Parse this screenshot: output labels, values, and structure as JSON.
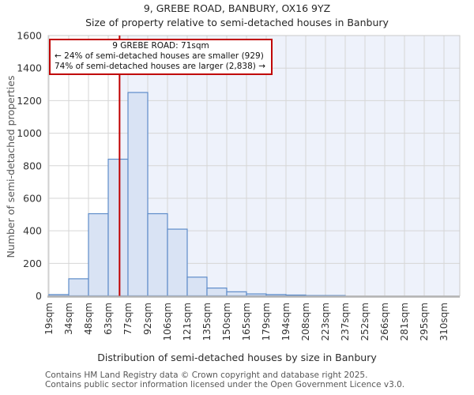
{
  "header": {
    "title_line1": "9, GREBE ROAD, BANBURY, OX16 9YZ",
    "title_line2": "Size of property relative to semi-detached houses in Banbury"
  },
  "annotation": {
    "line1": "9 GREBE ROAD: 71sqm",
    "line2": "← 24% of semi-detached houses are smaller (929)",
    "line3": "74% of semi-detached houses are larger (2,838) →",
    "border_color": "#c00000"
  },
  "footer": {
    "line1": "Contains HM Land Registry data © Crown copyright and database right 2025.",
    "line2": "Contains public sector information licensed under the Open Government Licence v3.0."
  },
  "chart_data": {
    "type": "bar",
    "title": "9, GREBE ROAD, BANBURY, OX16 9YZ — Size of property relative to semi-detached houses in Banbury",
    "xlabel": "Distribution of semi-detached houses by size in Banbury",
    "ylabel": "Number of semi-detached properties",
    "bin_edges_sqm": [
      19,
      34,
      48,
      63,
      77,
      92,
      106,
      121,
      135,
      150,
      165,
      179,
      194,
      208,
      223,
      237,
      252,
      266,
      281,
      295,
      310
    ],
    "x_tick_labels": [
      "19sqm",
      "34sqm",
      "48sqm",
      "63sqm",
      "77sqm",
      "92sqm",
      "106sqm",
      "121sqm",
      "135sqm",
      "150sqm",
      "165sqm",
      "179sqm",
      "194sqm",
      "208sqm",
      "223sqm",
      "237sqm",
      "252sqm",
      "266sqm",
      "281sqm",
      "295sqm",
      "310sqm"
    ],
    "values": [
      8,
      105,
      505,
      840,
      1250,
      505,
      410,
      115,
      48,
      25,
      12,
      8,
      5,
      2,
      2,
      0,
      0,
      0,
      0,
      0
    ],
    "y_ticks": [
      0,
      200,
      400,
      600,
      800,
      1000,
      1200,
      1400,
      1600
    ],
    "ylim": [
      0,
      1600
    ],
    "xlim_sqm": [
      19,
      310
    ],
    "grid": true,
    "legend": "none",
    "marker_value_sqm": 71,
    "marker_label": "9 GREBE ROAD: 71sqm",
    "colors": {
      "bar_fill": "#d9e3f4",
      "bar_stroke": "#5e8cc9",
      "shade_right_of_marker": "#eef2fb",
      "marker_line": "#c00000",
      "grid": "#d6d6d6",
      "spine": "#c9c9c9",
      "bottom_axis": "#b5b5b5"
    }
  }
}
